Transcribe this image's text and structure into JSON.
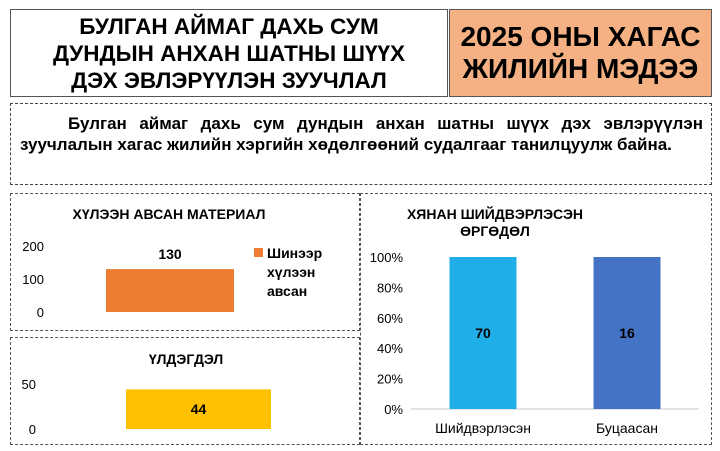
{
  "header": {
    "title": "БУЛГАН АЙМАГ ДАХЬ СУМ\nДУНДЫН АНХАН ШАТНЫ ШҮҮХ\nДЭХ ЭВЛЭРҮҮЛЭН ЗУУЧЛАЛ",
    "badge": "2025 ОНЫ ХАГАС\nЖИЛИЙН МЭДЭЭ",
    "badge_color": "#f5b183"
  },
  "intro_text": "Булган аймаг дахь сум дундын анхан шатны шүүх дэх эвлэрүүлэн зуучлалын хагас жилийн хэргийн хөдөлгөөний судалгааг танилцуулж байна.",
  "chart_data": [
    {
      "type": "bar",
      "orientation": "horizontal",
      "title": "ХҮЛЭЭН АВСАН МАТЕРИАЛ",
      "categories": [
        ""
      ],
      "series": [
        {
          "name": "Шинээр хүлээн авсан",
          "values": [
            130
          ],
          "color": "#ed7d31"
        }
      ],
      "ylim": [
        0,
        200
      ],
      "yticks": [
        0,
        100,
        200
      ],
      "data_labels": [
        "130"
      ],
      "legend": "right",
      "grid": false
    },
    {
      "type": "bar",
      "orientation": "horizontal",
      "title": "ҮЛДЭГДЭЛ",
      "categories": [
        ""
      ],
      "series": [
        {
          "values": [
            44
          ],
          "color": "#ffc000"
        }
      ],
      "ylim": [
        0,
        50
      ],
      "yticks": [
        0,
        50
      ],
      "data_labels": [
        "44"
      ],
      "grid": false
    },
    {
      "type": "bar",
      "stacked": "percent",
      "title": "ХЯНАН ШИЙДВЭРЛЭСЭН ӨРГӨДӨЛ",
      "categories": [
        "Шийдвэрлэсэн",
        "Буцаасан"
      ],
      "values": [
        70,
        16
      ],
      "colors": [
        "#1faee8",
        "#4472c4"
      ],
      "data_labels": [
        "70",
        "16"
      ],
      "ylim": [
        0,
        100
      ],
      "yticks": [
        "0%",
        "20%",
        "40%",
        "60%",
        "80%",
        "100%"
      ],
      "grid": false
    }
  ]
}
